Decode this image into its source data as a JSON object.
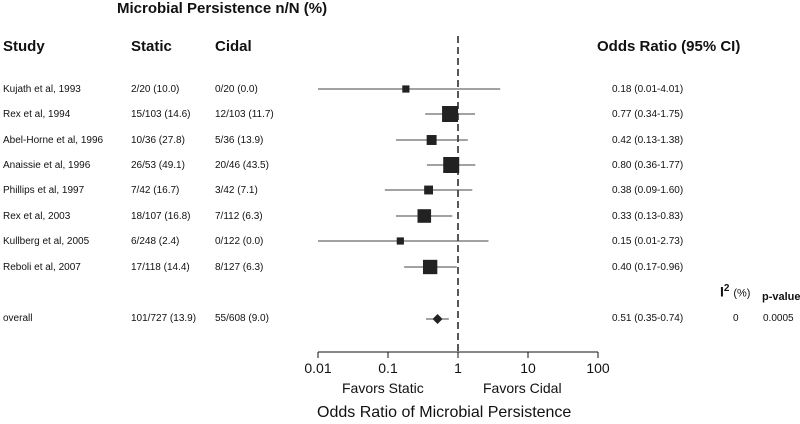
{
  "header": {
    "group_title": "Microbial Persistence n/N (%)",
    "col_study": "Study",
    "col_static": "Static",
    "col_cidal": "Cidal",
    "col_or": "Odds Ratio (95% CI)",
    "col_i2": "I",
    "col_i2_sup": "2",
    "col_i2_unit": "(%)",
    "col_pvalue": "p-value"
  },
  "chart_data": {
    "type": "forest",
    "x_scale": "log",
    "xlim": [
      0.01,
      100
    ],
    "x_ticks": [
      0.01,
      0.1,
      1,
      10,
      100
    ],
    "x_tick_labels": [
      "0.01",
      "0.1",
      "1",
      "10",
      "100"
    ],
    "reference_line": 1,
    "xlabel": "Odds Ratio of Microbial Persistence",
    "favors_left": "Favors Static",
    "favors_right": "Favors Cidal",
    "studies": [
      {
        "study": "Kujath et al, 1993",
        "static": "2/20 (10.0)",
        "cidal": "0/20 (0.0)",
        "or_text": "0.18 (0.01-4.01)",
        "or": 0.18,
        "lo": 0.01,
        "hi": 4.01,
        "weight": 0.2
      },
      {
        "study": "Rex et al, 1994",
        "static": "15/103 (14.6)",
        "cidal": "12/103 (11.7)",
        "or_text": "0.77 (0.34-1.75)",
        "or": 0.77,
        "lo": 0.34,
        "hi": 1.75,
        "weight": 1.0
      },
      {
        "study": "Abel-Horne et al, 1996",
        "static": "10/36 (27.8)",
        "cidal": "5/36 (13.9)",
        "or_text": "0.42 (0.13-1.38)",
        "or": 0.42,
        "lo": 0.13,
        "hi": 1.38,
        "weight": 0.45
      },
      {
        "study": "Anaissie et al, 1996",
        "static": "26/53 (49.1)",
        "cidal": "20/46 (43.5)",
        "or_text": "0.80 (0.36-1.77)",
        "or": 0.8,
        "lo": 0.36,
        "hi": 1.77,
        "weight": 1.0
      },
      {
        "study": "Phillips et al, 1997",
        "static": "7/42 (16.7)",
        "cidal": "3/42 (7.1)",
        "or_text": "0.38 (0.09-1.60)",
        "or": 0.38,
        "lo": 0.09,
        "hi": 1.6,
        "weight": 0.35
      },
      {
        "study": "Rex et al, 2003",
        "static": "18/107 (16.8)",
        "cidal": "7/112 (6.3)",
        "or_text": "0.33 (0.13-0.83)",
        "or": 0.33,
        "lo": 0.13,
        "hi": 0.83,
        "weight": 0.78
      },
      {
        "study": "Kullberg et al, 2005",
        "static": "6/248 (2.4)",
        "cidal": "0/122 (0.0)",
        "or_text": "0.15 (0.01-2.73)",
        "or": 0.15,
        "lo": 0.01,
        "hi": 2.73,
        "weight": 0.2
      },
      {
        "study": "Reboli et al, 2007",
        "static": "17/118 (14.4)",
        "cidal": "8/127 (6.3)",
        "or_text": "0.40 (0.17-0.96)",
        "or": 0.4,
        "lo": 0.17,
        "hi": 0.96,
        "weight": 0.85
      }
    ],
    "overall": {
      "study": "overall",
      "static": "101/727 (13.9)",
      "cidal": "55/608 (9.0)",
      "or_text": "0.51 (0.35-0.74)",
      "or": 0.51,
      "lo": 0.35,
      "hi": 0.74,
      "i2": "0",
      "pvalue": "0.0005"
    }
  }
}
